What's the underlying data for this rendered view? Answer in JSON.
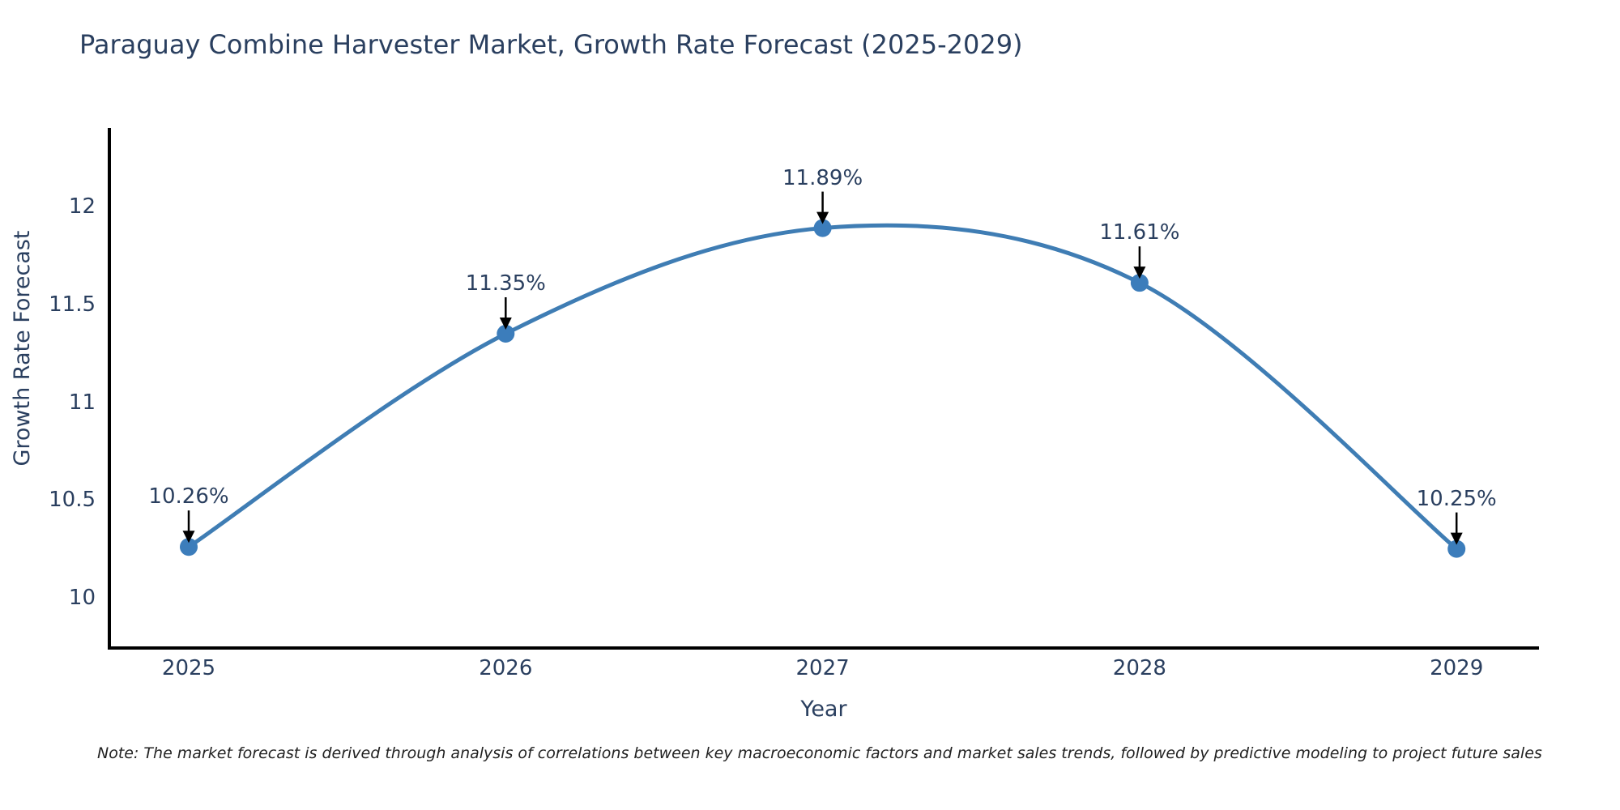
{
  "title": "Paraguay Combine Harvester Market, Growth Rate Forecast (2025-2029)",
  "note": "Note: The market forecast is derived through analysis of correlations between key macroeconomic factors and market sales trends, followed by predictive modeling to project future sales",
  "chart_data": {
    "type": "line",
    "title": "Paraguay Combine Harvester Market, Growth Rate Forecast (2025-2029)",
    "categories": [
      "2025",
      "2026",
      "2027",
      "2028",
      "2029"
    ],
    "values": [
      10.26,
      11.35,
      11.89,
      11.61,
      10.25
    ],
    "point_labels": [
      "10.26%",
      "11.35%",
      "11.89%",
      "11.61%",
      "10.25%"
    ],
    "xlabel": "Year",
    "ylabel": "Growth Rate Forecast",
    "yticks": [
      10,
      10.5,
      11,
      11.5,
      12
    ],
    "ytick_labels": [
      "10",
      "10.5",
      "11",
      "11.5",
      "12"
    ],
    "ylim": [
      9.74,
      12.4
    ],
    "grid": false,
    "legend": "none",
    "smooth": true,
    "annotation_style": "value label with black arrow pointing down to marker"
  },
  "colors": {
    "line": "#3f7db4",
    "marker": "#3c7dbb",
    "arrow": "#000000",
    "axis": "#000000",
    "text": "#2a3f5f",
    "background": "#ffffff"
  }
}
